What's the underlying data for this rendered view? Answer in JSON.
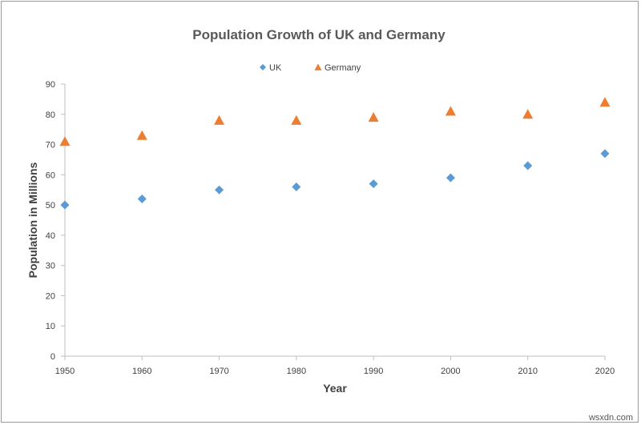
{
  "chart_data": {
    "type": "scatter",
    "title": "Population Growth of UK and Germany",
    "xlabel": "Year",
    "ylabel": "Population in Millions",
    "xlim": [
      1950,
      2020
    ],
    "ylim": [
      0,
      90
    ],
    "x_ticks": [
      1950,
      1960,
      1970,
      1980,
      1990,
      2000,
      2010,
      2020
    ],
    "y_ticks": [
      0,
      10,
      20,
      30,
      40,
      50,
      60,
      70,
      80,
      90
    ],
    "grid": false,
    "legend_position": "top-center",
    "x": [
      1950,
      1960,
      1970,
      1980,
      1990,
      2000,
      2010,
      2020
    ],
    "series": [
      {
        "name": "UK",
        "marker": "diamond",
        "color": "#5b9bd5",
        "values": [
          50,
          52,
          55,
          56,
          57,
          59,
          63,
          67
        ]
      },
      {
        "name": "Germany",
        "marker": "triangle",
        "color": "#ed7d31",
        "values": [
          71,
          73,
          78,
          78,
          79,
          81,
          80,
          84
        ]
      }
    ]
  },
  "watermark": "wsxdn.com",
  "colors": {
    "axis": "#bfbfbf",
    "text": "#404040",
    "title": "#595959"
  }
}
